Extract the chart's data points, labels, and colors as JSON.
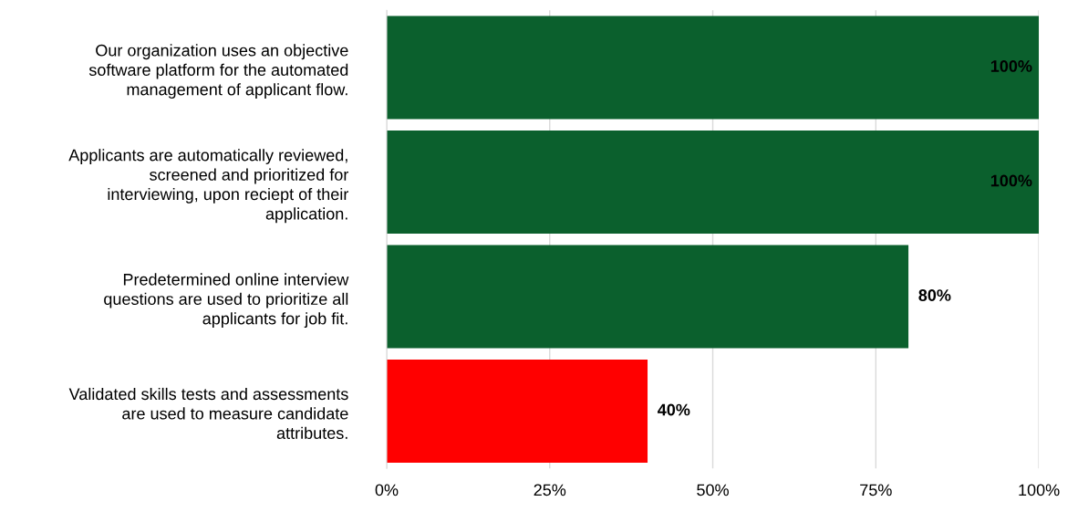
{
  "chart_data": {
    "type": "bar",
    "orientation": "horizontal",
    "categories": [
      "Our organization uses an objective\nsoftware platform for the automated\nmanagement of applicant flow.",
      "Applicants are automatically reviewed,\nscreened and prioritized for\ninterviewing, upon reciept of their\napplication.",
      "Predetermined online interview\nquestions are used to prioritize all\napplicants for job fit.",
      "Validated skills tests and assessments\nare used to measure candidate\nattributes."
    ],
    "values": [
      100,
      100,
      80,
      40
    ],
    "colors": [
      "#0b602d",
      "#0b602d",
      "#0b602d",
      "#ff0000"
    ],
    "value_labels": [
      "100%",
      "100%",
      "80%",
      "40%"
    ],
    "xlim": [
      0,
      100
    ],
    "xticks": [
      {
        "value": 0,
        "label": "0%"
      },
      {
        "value": 25,
        "label": "25%"
      },
      {
        "value": 50,
        "label": "50%"
      },
      {
        "value": 75,
        "label": "75%"
      },
      {
        "value": 100,
        "label": "100%"
      }
    ],
    "grid": "x",
    "legend": false
  }
}
